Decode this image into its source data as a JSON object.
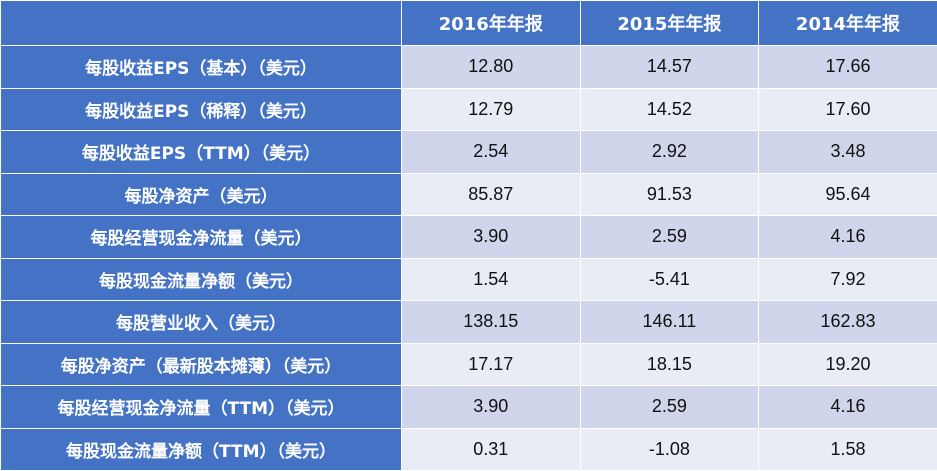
{
  "columns": [
    "2016年年报",
    "2015年年报",
    "2014年年报"
  ],
  "rows": [
    {
      "label": "每股收益EPS（基本）（美元）",
      "values": [
        "12.80",
        "14.57",
        "17.66"
      ]
    },
    {
      "label": "每股收益EPS（稀释）（美元）",
      "values": [
        "12.79",
        "14.52",
        "17.60"
      ]
    },
    {
      "label": "每股收益EPS（TTM）（美元）",
      "values": [
        "2.54",
        "2.92",
        "3.48"
      ]
    },
    {
      "label": "每股净资产（美元）",
      "values": [
        "85.87",
        "91.53",
        "95.64"
      ]
    },
    {
      "label": "每股经营现金净流量（美元）",
      "values": [
        "3.90",
        "2.59",
        "4.16"
      ]
    },
    {
      "label": "每股现金流量净额（美元）",
      "values": [
        "1.54",
        "-5.41",
        "7.92"
      ]
    },
    {
      "label": "每股营业收入（美元）",
      "values": [
        "138.15",
        "146.11",
        "162.83"
      ]
    },
    {
      "label": "每股净资产（最新股本摊薄）（美元）",
      "values": [
        "17.17",
        "18.15",
        "19.20"
      ]
    },
    {
      "label": "每股经营现金净流量（TTM）（美元）",
      "values": [
        "3.90",
        "2.59",
        "4.16"
      ]
    },
    {
      "label": "每股现金流量净额（TTM）（美元）",
      "values": [
        "0.31",
        "-1.08",
        "1.58"
      ]
    }
  ],
  "colors": {
    "header_bg": "#4472c4",
    "row_odd_bg": "#cfd5ea",
    "row_even_bg": "#e9ebf5",
    "header_text": "#ffffff",
    "cell_text": "#111111"
  }
}
